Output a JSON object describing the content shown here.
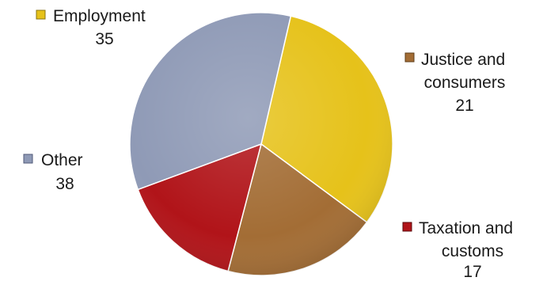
{
  "chart_data": {
    "type": "pie",
    "start_angle_deg": 77,
    "slices": [
      {
        "label_lines": [
          "Employment"
        ],
        "value": 35,
        "value_text": "35",
        "color": "#E6C21A"
      },
      {
        "label_lines": [
          "Justice and",
          "consumers"
        ],
        "value": 21,
        "value_text": "21",
        "color": "#A36D35"
      },
      {
        "label_lines": [
          "Taxation and",
          "customs"
        ],
        "value": 17,
        "value_text": "17",
        "color": "#B11419"
      },
      {
        "label_lines": [
          "Other"
        ],
        "value": 38,
        "value_text": "38",
        "color": "#8F9AB6"
      }
    ]
  }
}
